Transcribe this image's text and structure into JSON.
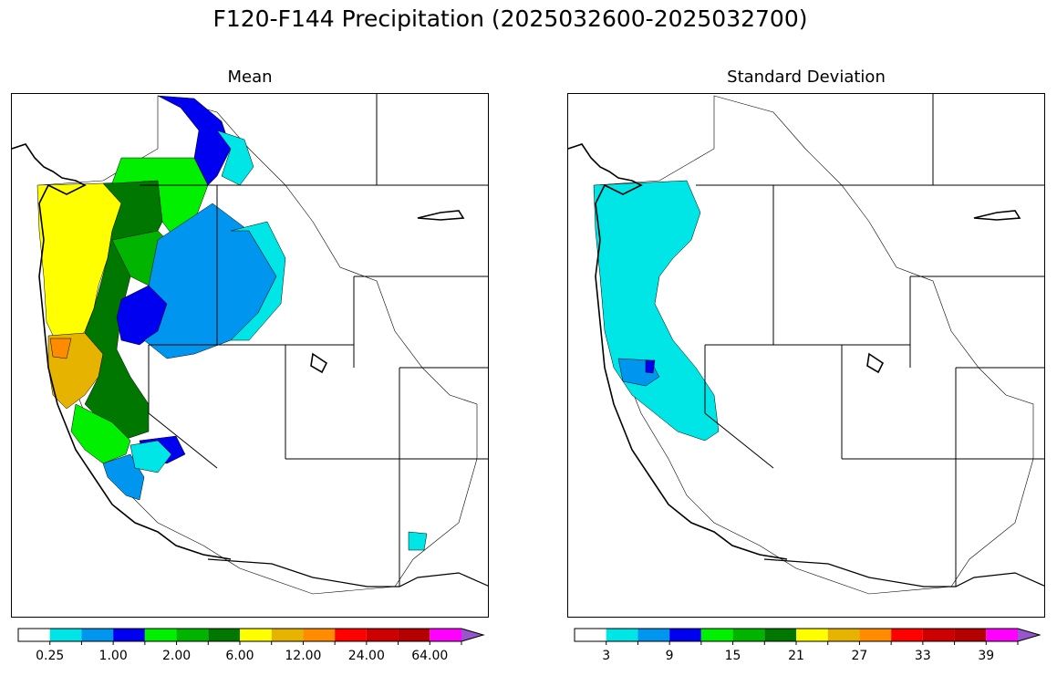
{
  "figure": {
    "title": "F120-F144 Precipitation (2025032600-2025032700)"
  },
  "panels": [
    {
      "title": "Mean",
      "colorbar": {
        "colors": [
          "#ffffff",
          "#00e5e5",
          "#0096f0",
          "#0000f0",
          "#00f000",
          "#00b400",
          "#007800",
          "#ffff00",
          "#e6b400",
          "#ff8c00",
          "#ff0000",
          "#cc0000",
          "#b40000",
          "#ff00ff",
          "#9955cc"
        ],
        "tick_labels": [
          "0.25",
          "1.00",
          "2.00",
          "6.00",
          "12.00",
          "24.00",
          "64.00"
        ],
        "extend": "max"
      }
    },
    {
      "title": "Standard Deviation",
      "colorbar": {
        "colors": [
          "#ffffff",
          "#00e5e5",
          "#0096f0",
          "#0000f0",
          "#00f000",
          "#00b400",
          "#007800",
          "#ffff00",
          "#e6b400",
          "#ff8c00",
          "#ff0000",
          "#cc0000",
          "#b40000",
          "#ff00ff",
          "#9955cc"
        ],
        "tick_labels": [
          "3",
          "9",
          "15",
          "21",
          "27",
          "33",
          "39"
        ],
        "extend": "max"
      }
    }
  ]
}
